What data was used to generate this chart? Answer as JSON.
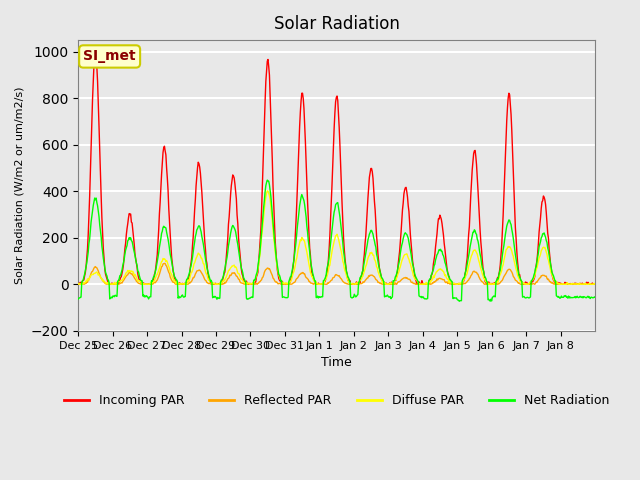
{
  "title": "Solar Radiation",
  "ylabel": "Solar Radiation (W/m2 or um/m2/s)",
  "xlabel": "Time",
  "ylim": [
    -200,
    1050
  ],
  "yticks": [
    -200,
    0,
    200,
    400,
    600,
    800,
    1000
  ],
  "background_color": "#e8e8e8",
  "plot_bg_color": "#e8e8e8",
  "grid_color": "white",
  "annotation_text": "SI_met",
  "annotation_color": "#8B0000",
  "annotation_bg": "#ffffcc",
  "annotation_border": "#cccc00",
  "line_colors": {
    "incoming": "red",
    "reflected": "orange",
    "diffuse": "yellow",
    "net": "lime"
  },
  "legend_labels": [
    "Incoming PAR",
    "Reflected PAR",
    "Diffuse PAR",
    "Net Radiation"
  ],
  "tick_labels": [
    "Dec 25",
    "Dec 26",
    "Dec 27",
    "Dec 28",
    "Dec 29",
    "Dec 30",
    "Dec 31",
    "Jan 1",
    "Jan 2",
    "Jan 3",
    "Jan 4",
    "Jan 5",
    "Jan 6",
    "Jan 7",
    "Jan 8"
  ],
  "n_days": 15,
  "points_per_day": 48
}
